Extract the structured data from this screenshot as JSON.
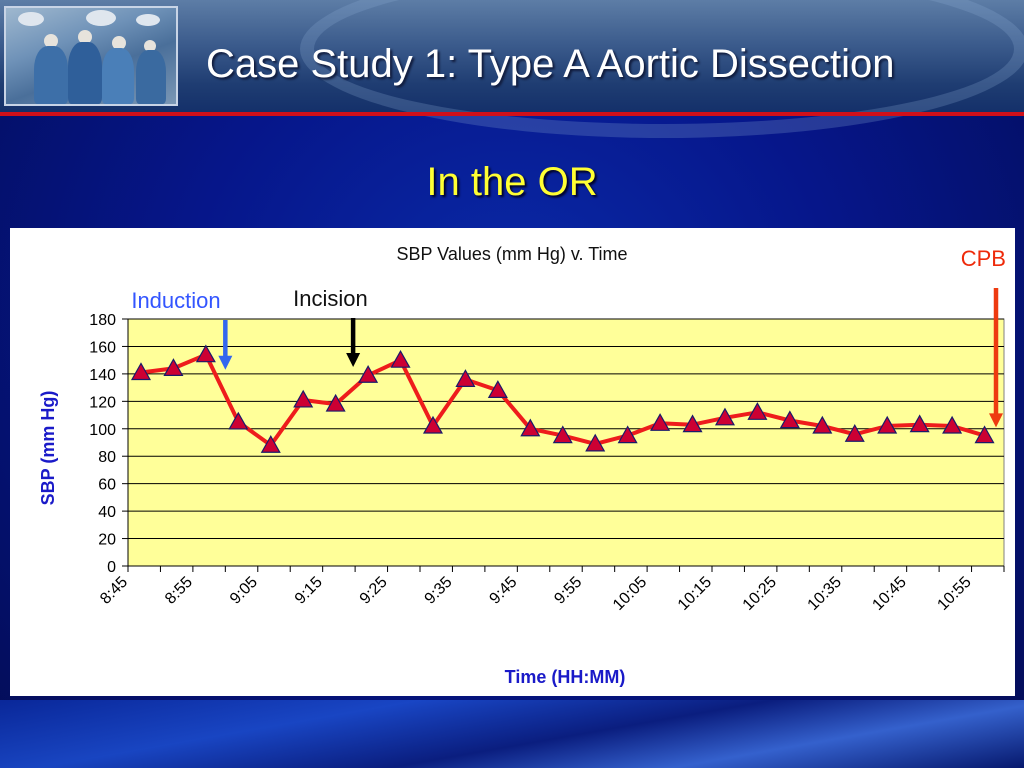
{
  "slide": {
    "title": "Case Study 1: Type A Aortic Dissection",
    "subtitle": "In the OR",
    "colors": {
      "title": "#ffffff",
      "subtitle": "#ffff33",
      "accent_red": "#d0101a",
      "background": "#0a1a66"
    }
  },
  "chart_data": {
    "type": "line",
    "title": "SBP Values (mm Hg) v. Time",
    "xlabel": "Time (HH:MM)",
    "ylabel": "SBP (mm Hg)",
    "ylim": [
      0,
      180
    ],
    "yticks": [
      0,
      20,
      40,
      60,
      80,
      100,
      120,
      140,
      160,
      180
    ],
    "x_tick_labels": [
      "8:45",
      "8:55",
      "9:05",
      "9:15",
      "9:25",
      "9:35",
      "9:45",
      "9:55",
      "10:05",
      "10:15",
      "10:25",
      "10:35",
      "10:45",
      "10:55"
    ],
    "x_minutes_range": [
      "8:45",
      "11:00"
    ],
    "grid": true,
    "plot_background": "#ffff99",
    "series": [
      {
        "color": "#ee1c1c",
        "marker_color": "#cc0033",
        "points": [
          {
            "t": "8:47",
            "v": 141
          },
          {
            "t": "8:52",
            "v": 144
          },
          {
            "t": "8:57",
            "v": 154
          },
          {
            "t": "9:02",
            "v": 105
          },
          {
            "t": "9:07",
            "v": 88
          },
          {
            "t": "9:12",
            "v": 121
          },
          {
            "t": "9:17",
            "v": 118
          },
          {
            "t": "9:22",
            "v": 139
          },
          {
            "t": "9:27",
            "v": 150
          },
          {
            "t": "9:32",
            "v": 102
          },
          {
            "t": "9:37",
            "v": 136
          },
          {
            "t": "9:42",
            "v": 128
          },
          {
            "t": "9:47",
            "v": 100
          },
          {
            "t": "9:52",
            "v": 95
          },
          {
            "t": "9:57",
            "v": 89
          },
          {
            "t": "10:02",
            "v": 95
          },
          {
            "t": "10:07",
            "v": 104
          },
          {
            "t": "10:12",
            "v": 103
          },
          {
            "t": "10:17",
            "v": 108
          },
          {
            "t": "10:22",
            "v": 112
          },
          {
            "t": "10:27",
            "v": 106
          },
          {
            "t": "10:32",
            "v": 102
          },
          {
            "t": "10:37",
            "v": 96
          },
          {
            "t": "10:42",
            "v": 102
          },
          {
            "t": "10:47",
            "v": 103
          },
          {
            "t": "10:52",
            "v": 102
          },
          {
            "t": "10:57",
            "v": 95
          }
        ]
      }
    ],
    "annotations": [
      {
        "label": "Induction",
        "at": "9:00",
        "color": "#3355ff",
        "arrow_color": "#3366ee",
        "arrow_to": 143
      },
      {
        "label": "Incision",
        "at": "9:20",
        "color": "#111111",
        "arrow_color": "#000000",
        "arrow_to": 145
      },
      {
        "label": "CPB",
        "at": "11:00",
        "color": "#ee2a0a",
        "arrow_color": "#ee3a10",
        "arrow_to": 101
      }
    ]
  }
}
